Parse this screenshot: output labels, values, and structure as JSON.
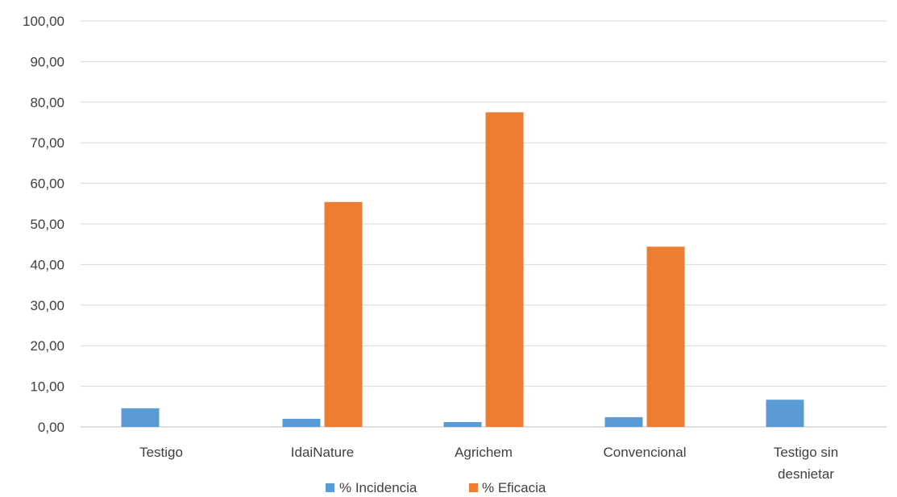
{
  "chart_data": {
    "type": "bar",
    "categories": [
      [
        "Testigo"
      ],
      [
        "IdaiNature"
      ],
      [
        "Agrichem"
      ],
      [
        "Convencional"
      ],
      [
        "Testigo sin",
        "desnietar"
      ]
    ],
    "series": [
      {
        "name": "% Incidencia",
        "color": "#5B9BD5",
        "values": [
          4.6,
          2.0,
          1.2,
          2.4,
          6.7
        ]
      },
      {
        "name": "% Eficacia",
        "color": "#ED7D31",
        "values": [
          0.0,
          55.4,
          77.5,
          44.4,
          0.0
        ]
      }
    ],
    "ylim": [
      0,
      100
    ],
    "yticks": [
      "0,00",
      "10,00",
      "20,00",
      "30,00",
      "40,00",
      "50,00",
      "60,00",
      "70,00",
      "80,00",
      "90,00",
      "100,00"
    ],
    "grid": true,
    "legend": "bottom",
    "gridColor": "#d9d9d9"
  }
}
